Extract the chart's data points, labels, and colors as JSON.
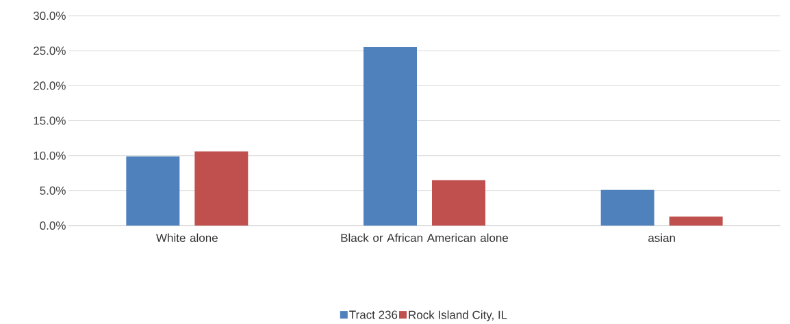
{
  "chart_data": {
    "type": "bar",
    "categories": [
      "White alone",
      "Black or African American alone",
      "asian"
    ],
    "series": [
      {
        "name": "Tract 236",
        "color": "#4f81bd",
        "values": [
          9.9,
          25.5,
          5.1
        ]
      },
      {
        "name": "Rock Island City, IL",
        "color": "#c0504d",
        "values": [
          10.6,
          6.5,
          1.3
        ]
      }
    ],
    "ylim": [
      0,
      30
    ],
    "yticks": [
      {
        "value": 0,
        "label": "0.0%"
      },
      {
        "value": 5,
        "label": "5.0%"
      },
      {
        "value": 10,
        "label": "10.0%"
      },
      {
        "value": 15,
        "label": "15.0%"
      },
      {
        "value": 20,
        "label": "20.0%"
      },
      {
        "value": 25,
        "label": "25.0%"
      },
      {
        "value": 30,
        "label": "30.0%"
      }
    ],
    "grid": "y",
    "legend": "bottom"
  }
}
